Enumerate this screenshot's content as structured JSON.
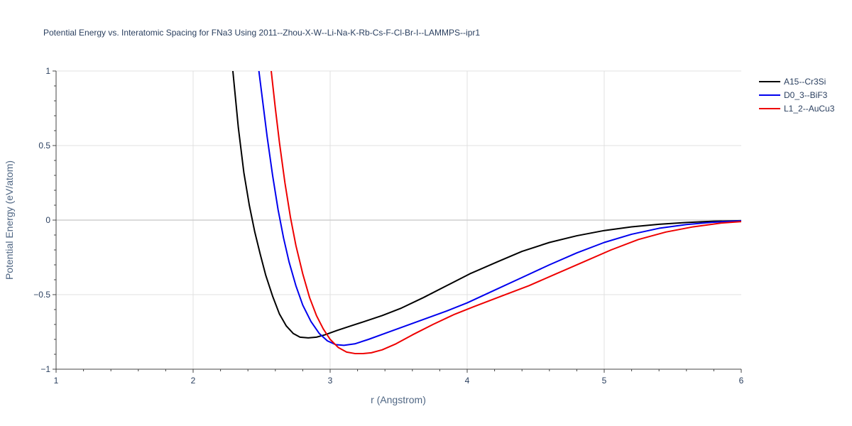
{
  "chart_data": {
    "type": "line",
    "title": "Potential Energy vs. Interatomic Spacing for FNa3 Using 2011--Zhou-X-W--Li-Na-K-Rb-Cs-F-Cl-Br-I--LAMMPS--ipr1",
    "xlabel": "r (Angstrom)",
    "ylabel": "Potential Energy (eV/atom)",
    "xlim": [
      1,
      6
    ],
    "ylim": [
      -1,
      1
    ],
    "xticks": [
      1,
      2,
      3,
      4,
      5,
      6
    ],
    "yticks": [
      -1,
      -0.5,
      0,
      0.5,
      1
    ],
    "ytick_labels": [
      "−1",
      "−0.5",
      "0",
      "0.5",
      "1"
    ],
    "grid": true,
    "legend_position": "top-right",
    "series": [
      {
        "name": "A15--Cr3Si",
        "color": "#000000",
        "x": [
          2.29,
          2.33,
          2.37,
          2.41,
          2.45,
          2.49,
          2.53,
          2.58,
          2.63,
          2.68,
          2.73,
          2.78,
          2.84,
          2.9,
          2.96,
          3.05,
          3.15,
          3.25,
          3.38,
          3.52,
          3.68,
          3.85,
          4.02,
          4.22,
          4.4,
          4.6,
          4.8,
          5.0,
          5.2,
          5.4,
          5.6,
          5.8,
          6.0
        ],
        "y": [
          1.0,
          0.62,
          0.32,
          0.1,
          -0.08,
          -0.23,
          -0.37,
          -0.51,
          -0.63,
          -0.71,
          -0.76,
          -0.785,
          -0.79,
          -0.785,
          -0.77,
          -0.74,
          -0.71,
          -0.68,
          -0.64,
          -0.59,
          -0.52,
          -0.44,
          -0.36,
          -0.28,
          -0.21,
          -0.15,
          -0.105,
          -0.07,
          -0.045,
          -0.028,
          -0.016,
          -0.008,
          -0.004
        ]
      },
      {
        "name": "D0_3--BiF3",
        "color": "#0000ee",
        "x": [
          2.48,
          2.51,
          2.54,
          2.58,
          2.62,
          2.66,
          2.7,
          2.75,
          2.8,
          2.86,
          2.92,
          2.98,
          3.04,
          3.1,
          3.18,
          3.28,
          3.4,
          3.55,
          3.7,
          3.85,
          4.0,
          4.2,
          4.4,
          4.6,
          4.8,
          5.0,
          5.2,
          5.4,
          5.6,
          5.8,
          6.0
        ],
        "y": [
          1.0,
          0.78,
          0.56,
          0.3,
          0.07,
          -0.12,
          -0.28,
          -0.44,
          -0.57,
          -0.68,
          -0.76,
          -0.81,
          -0.835,
          -0.84,
          -0.83,
          -0.8,
          -0.76,
          -0.71,
          -0.66,
          -0.61,
          -0.555,
          -0.47,
          -0.385,
          -0.3,
          -0.22,
          -0.15,
          -0.095,
          -0.055,
          -0.03,
          -0.014,
          -0.005
        ]
      },
      {
        "name": "L1_2--AuCu3",
        "color": "#ee0000",
        "x": [
          2.57,
          2.6,
          2.63,
          2.67,
          2.71,
          2.75,
          2.8,
          2.85,
          2.9,
          2.95,
          3.0,
          3.06,
          3.12,
          3.18,
          3.24,
          3.3,
          3.38,
          3.48,
          3.6,
          3.75,
          3.9,
          4.05,
          4.25,
          4.45,
          4.65,
          4.85,
          5.05,
          5.25,
          5.45,
          5.65,
          5.85,
          6.0
        ],
        "y": [
          1.0,
          0.75,
          0.52,
          0.25,
          0.02,
          -0.17,
          -0.36,
          -0.52,
          -0.64,
          -0.73,
          -0.8,
          -0.855,
          -0.885,
          -0.895,
          -0.895,
          -0.89,
          -0.87,
          -0.83,
          -0.77,
          -0.7,
          -0.635,
          -0.58,
          -0.51,
          -0.44,
          -0.36,
          -0.28,
          -0.2,
          -0.13,
          -0.08,
          -0.045,
          -0.02,
          -0.01
        ]
      }
    ]
  }
}
